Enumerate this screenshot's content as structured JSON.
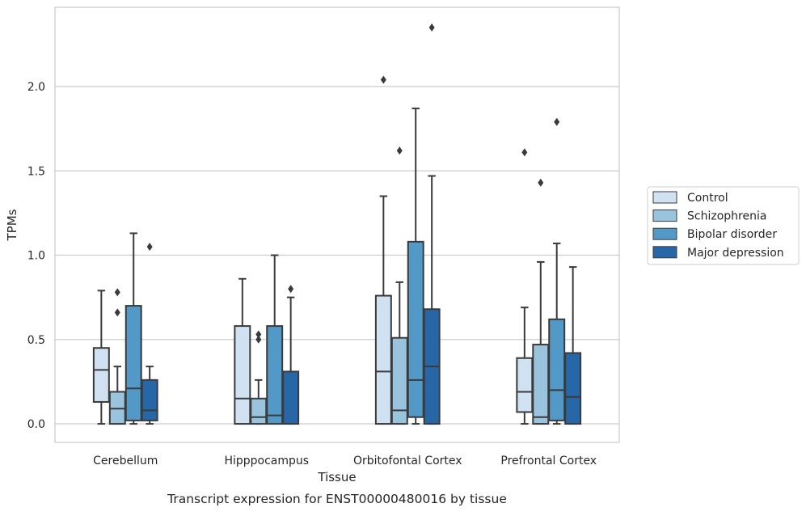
{
  "chart_data": {
    "type": "boxplot",
    "title": "",
    "caption": "Transcript expression for ENST00000480016 by tissue",
    "xlabel": "Tissue",
    "ylabel": "TPMs",
    "ylim": [
      -0.11,
      2.47
    ],
    "yticks": [
      "0.0",
      "0.5",
      "1.0",
      "1.5",
      "2.0"
    ],
    "grid": "horizontal",
    "legend_position": "right",
    "categories": [
      "Cerebellum",
      "Hipppocampus",
      "Orbitofontal Cortex",
      "Prefrontal Cortex"
    ],
    "series": [
      {
        "name": "Control",
        "color": "#d0e2f2",
        "boxes": [
          {
            "min": 0.0,
            "q1": 0.13,
            "median": 0.32,
            "q3": 0.45,
            "max": 0.79,
            "outliers": []
          },
          {
            "min": 0.0,
            "q1": 0.0,
            "median": 0.15,
            "q3": 0.58,
            "max": 0.86,
            "outliers": []
          },
          {
            "min": 0.0,
            "q1": 0.0,
            "median": 0.31,
            "q3": 0.76,
            "max": 1.35,
            "outliers": [
              2.04
            ]
          },
          {
            "min": 0.0,
            "q1": 0.07,
            "median": 0.19,
            "q3": 0.39,
            "max": 0.69,
            "outliers": [
              1.61
            ]
          }
        ]
      },
      {
        "name": "Schizophrenia",
        "color": "#9ac3de",
        "boxes": [
          {
            "min": 0.0,
            "q1": 0.0,
            "median": 0.09,
            "q3": 0.19,
            "max": 0.34,
            "outliers": [
              0.66,
              0.78
            ]
          },
          {
            "min": 0.0,
            "q1": 0.0,
            "median": 0.04,
            "q3": 0.15,
            "max": 0.26,
            "outliers": [
              0.5,
              0.53
            ]
          },
          {
            "min": 0.0,
            "q1": 0.0,
            "median": 0.08,
            "q3": 0.51,
            "max": 0.84,
            "outliers": [
              1.62
            ]
          },
          {
            "min": 0.0,
            "q1": 0.0,
            "median": 0.04,
            "q3": 0.47,
            "max": 0.96,
            "outliers": [
              1.43
            ]
          }
        ]
      },
      {
        "name": "Bipolar disorder",
        "color": "#5399c7",
        "boxes": [
          {
            "min": 0.0,
            "q1": 0.02,
            "median": 0.21,
            "q3": 0.7,
            "max": 1.13,
            "outliers": []
          },
          {
            "min": 0.0,
            "q1": 0.0,
            "median": 0.05,
            "q3": 0.58,
            "max": 1.0,
            "outliers": []
          },
          {
            "min": 0.0,
            "q1": 0.04,
            "median": 0.26,
            "q3": 1.08,
            "max": 1.87,
            "outliers": []
          },
          {
            "min": 0.0,
            "q1": 0.02,
            "median": 0.2,
            "q3": 0.62,
            "max": 1.07,
            "outliers": [
              1.79
            ]
          }
        ]
      },
      {
        "name": "Major depression",
        "color": "#2767a8",
        "boxes": [
          {
            "min": 0.0,
            "q1": 0.02,
            "median": 0.08,
            "q3": 0.26,
            "max": 0.34,
            "outliers": [
              1.05
            ]
          },
          {
            "min": 0.0,
            "q1": 0.0,
            "median": 0.0,
            "q3": 0.31,
            "max": 0.75,
            "outliers": [
              0.8
            ]
          },
          {
            "min": 0.0,
            "q1": 0.0,
            "median": 0.34,
            "q3": 0.68,
            "max": 1.47,
            "outliers": [
              2.35
            ]
          },
          {
            "min": 0.0,
            "q1": 0.0,
            "median": 0.16,
            "q3": 0.42,
            "max": 0.93,
            "outliers": []
          }
        ]
      }
    ]
  }
}
